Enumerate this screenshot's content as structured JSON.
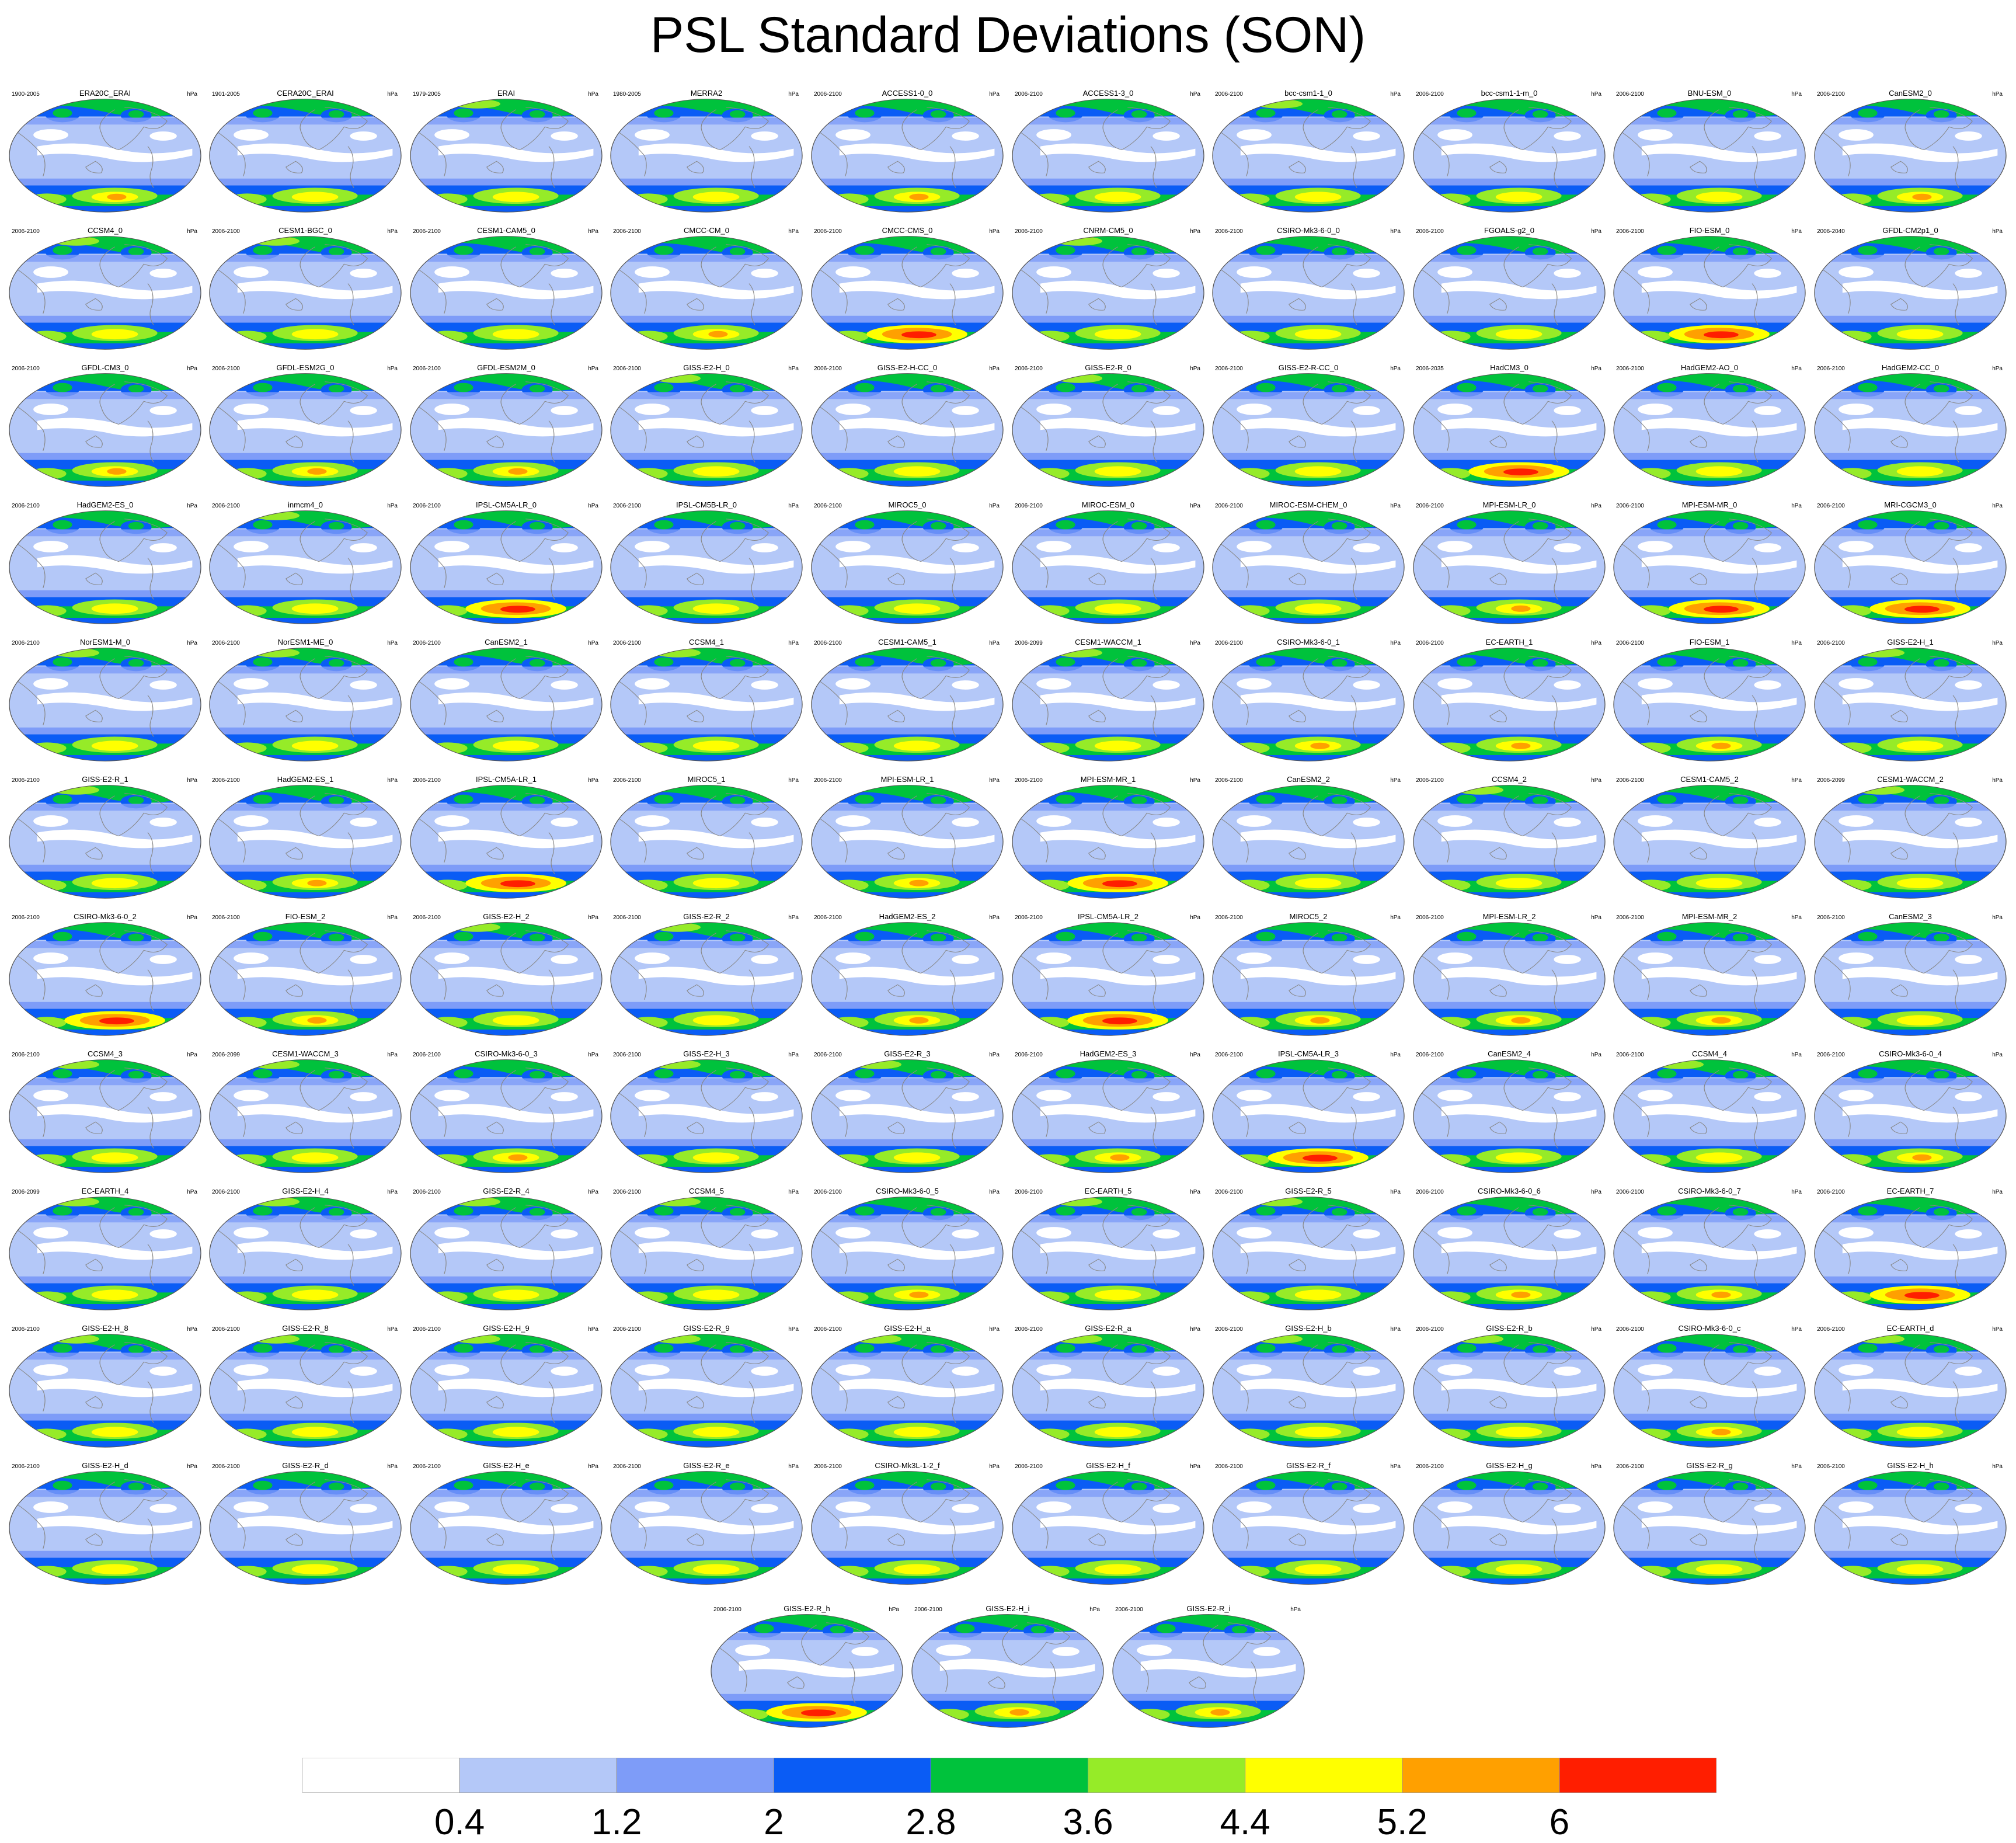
{
  "title": "PSL Standard Deviations (SON)",
  "panel_unit": "hPa",
  "panels": [
    {
      "model": "ERA20C_ERAI",
      "years": "1900-2005",
      "style": 0
    },
    {
      "model": "CERA20C_ERAI",
      "years": "1901-2005",
      "style": 1
    },
    {
      "model": "ERAI",
      "years": "1979-2005",
      "style": 2
    },
    {
      "model": "MERRA2",
      "years": "1980-2005",
      "style": 1
    },
    {
      "model": "ACCESS1-0_0",
      "years": "2006-2100",
      "style": 0
    },
    {
      "model": "ACCESS1-3_0",
      "years": "2006-2100",
      "style": 1
    },
    {
      "model": "bcc-csm1-1_0",
      "years": "2006-2100",
      "style": 2
    },
    {
      "model": "bcc-csm1-1-m_0",
      "years": "2006-2100",
      "style": 1
    },
    {
      "model": "BNU-ESM_0",
      "years": "2006-2100",
      "style": 1
    },
    {
      "model": "CanESM2_0",
      "years": "2006-2100",
      "style": 0
    },
    {
      "model": "CCSM4_0",
      "years": "2006-2100",
      "style": 2
    },
    {
      "model": "CESM1-BGC_0",
      "years": "2006-2100",
      "style": 2
    },
    {
      "model": "CESM1-CAM5_0",
      "years": "2006-2100",
      "style": 1
    },
    {
      "model": "CMCC-CM_0",
      "years": "2006-2100",
      "style": 0
    },
    {
      "model": "CMCC-CMS_0",
      "years": "2006-2100",
      "style": 3
    },
    {
      "model": "CNRM-CM5_0",
      "years": "2006-2100",
      "style": 2
    },
    {
      "model": "CSIRO-Mk3-6-0_0",
      "years": "2006-2100",
      "style": 1
    },
    {
      "model": "FGOALS-g2_0",
      "years": "2006-2100",
      "style": 1
    },
    {
      "model": "FIO-ESM_0",
      "years": "2006-2100",
      "style": 3
    },
    {
      "model": "GFDL-CM2p1_0",
      "years": "2006-2040",
      "style": 1
    },
    {
      "model": "GFDL-CM3_0",
      "years": "2006-2100",
      "style": 0
    },
    {
      "model": "GFDL-ESM2G_0",
      "years": "2006-2100",
      "style": 0
    },
    {
      "model": "GFDL-ESM2M_0",
      "years": "2006-2100",
      "style": 0
    },
    {
      "model": "GISS-E2-H_0",
      "years": "2006-2100",
      "style": 2
    },
    {
      "model": "GISS-E2-H-CC_0",
      "years": "2006-2100",
      "style": 1
    },
    {
      "model": "GISS-E2-R_0",
      "years": "2006-2100",
      "style": 2
    },
    {
      "model": "GISS-E2-R-CC_0",
      "years": "2006-2100",
      "style": 1
    },
    {
      "model": "HadCM3_0",
      "years": "2006-2035",
      "style": 3
    },
    {
      "model": "HadGEM2-AO_0",
      "years": "2006-2100",
      "style": 1
    },
    {
      "model": "HadGEM2-CC_0",
      "years": "2006-2100",
      "style": 1
    },
    {
      "model": "HadGEM2-ES_0",
      "years": "2006-2100",
      "style": 1
    },
    {
      "model": "inmcm4_0",
      "years": "2006-2100",
      "style": 2
    },
    {
      "model": "IPSL-CM5A-LR_0",
      "years": "2006-2100",
      "style": 3
    },
    {
      "model": "IPSL-CM5B-LR_0",
      "years": "2006-2100",
      "style": 1
    },
    {
      "model": "MIROC5_0",
      "years": "2006-2100",
      "style": 1
    },
    {
      "model": "MIROC-ESM_0",
      "years": "2006-2100",
      "style": 1
    },
    {
      "model": "MIROC-ESM-CHEM_0",
      "years": "2006-2100",
      "style": 1
    },
    {
      "model": "MPI-ESM-LR_0",
      "years": "2006-2100",
      "style": 0
    },
    {
      "model": "MPI-ESM-MR_0",
      "years": "2006-2100",
      "style": 3
    },
    {
      "model": "MRI-CGCM3_0",
      "years": "2006-2100",
      "style": 3
    },
    {
      "model": "NorESM1-M_0",
      "years": "2006-2100",
      "style": 2
    },
    {
      "model": "NorESM1-ME_0",
      "years": "2006-2100",
      "style": 2
    },
    {
      "model": "CanESM2_1",
      "years": "2006-2100",
      "style": 1
    },
    {
      "model": "CCSM4_1",
      "years": "2006-2100",
      "style": 2
    },
    {
      "model": "CESM1-CAM5_1",
      "years": "2006-2100",
      "style": 1
    },
    {
      "model": "CESM1-WACCM_1",
      "years": "2006-2099",
      "style": 2
    },
    {
      "model": "CSIRO-Mk3-6-0_1",
      "years": "2006-2100",
      "style": 0
    },
    {
      "model": "EC-EARTH_1",
      "years": "2006-2100",
      "style": 0
    },
    {
      "model": "FIO-ESM_1",
      "years": "2006-2100",
      "style": 0
    },
    {
      "model": "GISS-E2-H_1",
      "years": "2006-2100",
      "style": 2
    },
    {
      "model": "GISS-E2-R_1",
      "years": "2006-2100",
      "style": 2
    },
    {
      "model": "HadGEM2-ES_1",
      "years": "2006-2100",
      "style": 0
    },
    {
      "model": "IPSL-CM5A-LR_1",
      "years": "2006-2100",
      "style": 3
    },
    {
      "model": "MIROC5_1",
      "years": "2006-2100",
      "style": 1
    },
    {
      "model": "MPI-ESM-LR_1",
      "years": "2006-2100",
      "style": 0
    },
    {
      "model": "MPI-ESM-MR_1",
      "years": "2006-2100",
      "style": 3
    },
    {
      "model": "CanESM2_2",
      "years": "2006-2100",
      "style": 1
    },
    {
      "model": "CCSM4_2",
      "years": "2006-2100",
      "style": 2
    },
    {
      "model": "CESM1-CAM5_2",
      "years": "2006-2100",
      "style": 1
    },
    {
      "model": "CESM1-WACCM_2",
      "years": "2006-2099",
      "style": 2
    },
    {
      "model": "CSIRO-Mk3-6-0_2",
      "years": "2006-2100",
      "style": 3
    },
    {
      "model": "FIO-ESM_2",
      "years": "2006-2100",
      "style": 0
    },
    {
      "model": "GISS-E2-H_2",
      "years": "2006-2100",
      "style": 2
    },
    {
      "model": "GISS-E2-R_2",
      "years": "2006-2100",
      "style": 2
    },
    {
      "model": "HadGEM2-ES_2",
      "years": "2006-2100",
      "style": 0
    },
    {
      "model": "IPSL-CM5A-LR_2",
      "years": "2006-2100",
      "style": 3
    },
    {
      "model": "MIROC5_2",
      "years": "2006-2100",
      "style": 0
    },
    {
      "model": "MPI-ESM-LR_2",
      "years": "2006-2100",
      "style": 0
    },
    {
      "model": "MPI-ESM-MR_2",
      "years": "2006-2100",
      "style": 0
    },
    {
      "model": "CanESM2_3",
      "years": "2006-2100",
      "style": 1
    },
    {
      "model": "CCSM4_3",
      "years": "2006-2100",
      "style": 2
    },
    {
      "model": "CESM1-WACCM_3",
      "years": "2006-2099",
      "style": 2
    },
    {
      "model": "CSIRO-Mk3-6-0_3",
      "years": "2006-2100",
      "style": 0
    },
    {
      "model": "GISS-E2-H_3",
      "years": "2006-2100",
      "style": 2
    },
    {
      "model": "GISS-E2-R_3",
      "years": "2006-2100",
      "style": 2
    },
    {
      "model": "HadGEM2-ES_3",
      "years": "2006-2100",
      "style": 0
    },
    {
      "model": "IPSL-CM5A-LR_3",
      "years": "2006-2100",
      "style": 3
    },
    {
      "model": "CanESM2_4",
      "years": "2006-2100",
      "style": 1
    },
    {
      "model": "CCSM4_4",
      "years": "2006-2100",
      "style": 2
    },
    {
      "model": "CSIRO-Mk3-6-0_4",
      "years": "2006-2100",
      "style": 0
    },
    {
      "model": "EC-EARTH_4",
      "years": "2006-2099",
      "style": 2
    },
    {
      "model": "GISS-E2-H_4",
      "years": "2006-2100",
      "style": 2
    },
    {
      "model": "GISS-E2-R_4",
      "years": "2006-2100",
      "style": 2
    },
    {
      "model": "CCSM4_5",
      "years": "2006-2100",
      "style": 2
    },
    {
      "model": "CSIRO-Mk3-6-0_5",
      "years": "2006-2100",
      "style": 0
    },
    {
      "model": "EC-EARTH_5",
      "years": "2006-2100",
      "style": 2
    },
    {
      "model": "GISS-E2-R_5",
      "years": "2006-2100",
      "style": 2
    },
    {
      "model": "CSIRO-Mk3-6-0_6",
      "years": "2006-2100",
      "style": 0
    },
    {
      "model": "CSIRO-Mk3-6-0_7",
      "years": "2006-2100",
      "style": 0
    },
    {
      "model": "EC-EARTH_7",
      "years": "2006-2100",
      "style": 3
    },
    {
      "model": "GISS-E2-H_8",
      "years": "2006-2100",
      "style": 2
    },
    {
      "model": "GISS-E2-R_8",
      "years": "2006-2100",
      "style": 2
    },
    {
      "model": "GISS-E2-H_9",
      "years": "2006-2100",
      "style": 2
    },
    {
      "model": "GISS-E2-R_9",
      "years": "2006-2100",
      "style": 2
    },
    {
      "model": "GISS-E2-H_a",
      "years": "2006-2100",
      "style": 2
    },
    {
      "model": "GISS-E2-R_a",
      "years": "2006-2100",
      "style": 2
    },
    {
      "model": "GISS-E2-H_b",
      "years": "2006-2100",
      "style": 2
    },
    {
      "model": "GISS-E2-R_b",
      "years": "2006-2100",
      "style": 2
    },
    {
      "model": "CSIRO-Mk3-6-0_c",
      "years": "2006-2100",
      "style": 0
    },
    {
      "model": "EC-EARTH_d",
      "years": "2006-2100",
      "style": 2
    },
    {
      "model": "GISS-E2-H_d",
      "years": "2006-2100",
      "style": 1
    },
    {
      "model": "GISS-E2-R_d",
      "years": "2006-2100",
      "style": 1
    },
    {
      "model": "GISS-E2-H_e",
      "years": "2006-2100",
      "style": 1
    },
    {
      "model": "GISS-E2-R_e",
      "years": "2006-2100",
      "style": 1
    },
    {
      "model": "CSIRO-Mk3L-1-2_f",
      "years": "2006-2100",
      "style": 1
    },
    {
      "model": "GISS-E2-H_f",
      "years": "2006-2100",
      "style": 1
    },
    {
      "model": "GISS-E2-R_f",
      "years": "2006-2100",
      "style": 1
    },
    {
      "model": "GISS-E2-H_g",
      "years": "2006-2100",
      "style": 1
    },
    {
      "model": "GISS-E2-R_g",
      "years": "2006-2100",
      "style": 1
    },
    {
      "model": "GISS-E2-H_h",
      "years": "2006-2100",
      "style": 1
    },
    {
      "model": "GISS-E2-R_h",
      "years": "2006-2100",
      "style": 3
    },
    {
      "model": "GISS-E2-H_i",
      "years": "2006-2100",
      "style": 0
    },
    {
      "model": "GISS-E2-R_i",
      "years": "2006-2100",
      "style": 0
    }
  ],
  "colorbar": {
    "colors": [
      "#ffffff",
      "#b4c8f8",
      "#7e9cf8",
      "#0a5cf5",
      "#00c23c",
      "#96eb28",
      "#ffff00",
      "#ffa000",
      "#ff1e00"
    ],
    "labels": [
      "0.4",
      "1.2",
      "2",
      "2.8",
      "3.6",
      "4.4",
      "5.2",
      "6"
    ]
  }
}
